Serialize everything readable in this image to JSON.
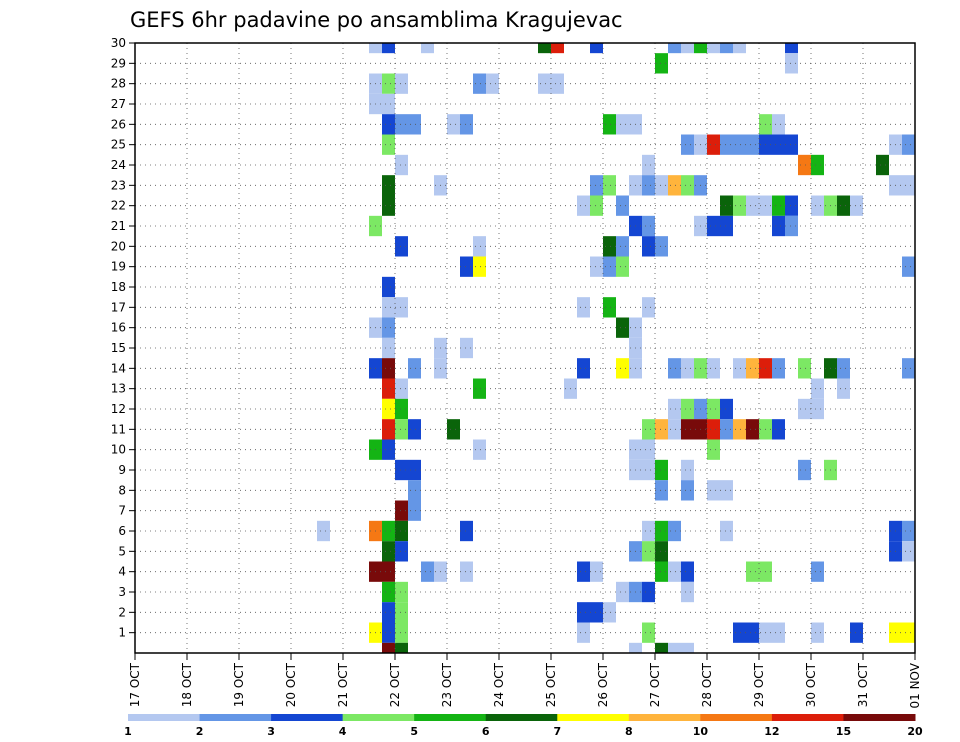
{
  "chart_data": {
    "type": "heatmap",
    "title": "GEFS 6hr padavine po ansamblima Kragujevac",
    "xlabel": "",
    "ylabel": "",
    "x_ticks": [
      "17 OCT",
      "18 OCT",
      "19 OCT",
      "20 OCT",
      "21 OCT",
      "22 OCT",
      "23 OCT",
      "24 OCT",
      "25 OCT",
      "26 OCT",
      "27 OCT",
      "28 OCT",
      "29 OCT",
      "30 OCT",
      "31 OCT",
      "01 NOV"
    ],
    "y_ticks": [
      "1",
      "2",
      "3",
      "4",
      "5",
      "6",
      "7",
      "8",
      "9",
      "10",
      "11",
      "12",
      "13",
      "14",
      "15",
      "16",
      "17",
      "18",
      "19",
      "20",
      "21",
      "22",
      "23",
      "24",
      "25",
      "26",
      "27",
      "28",
      "29",
      "30"
    ],
    "y_range": [
      0,
      30
    ],
    "x_range_days": [
      0,
      15
    ],
    "grid": true,
    "colorbar": {
      "levels": [
        "1",
        "2",
        "3",
        "4",
        "5",
        "6",
        "7",
        "8",
        "10",
        "12",
        "15",
        "20"
      ],
      "colors": [
        "#b4c8f0",
        "#6496e6",
        "#1446d2",
        "#7ce864",
        "#14b414",
        "#0a640a",
        "#ffff00",
        "#ffb43c",
        "#f57814",
        "#dc1e0a",
        "#780a0a"
      ],
      "placement": "bottom"
    },
    "cells": [
      [
        21.5,
        30,
        1
      ],
      [
        21.75,
        30,
        3
      ],
      [
        22.5,
        30,
        1
      ],
      [
        24.75,
        30,
        6
      ],
      [
        25,
        30,
        10
      ],
      [
        25.75,
        30,
        3
      ],
      [
        27.25,
        30,
        2
      ],
      [
        27.5,
        30,
        1
      ],
      [
        27.75,
        30,
        5
      ],
      [
        28,
        30,
        1
      ],
      [
        28.25,
        30,
        2
      ],
      [
        28.5,
        30,
        1
      ],
      [
        29.5,
        30,
        3
      ],
      [
        27,
        29,
        5
      ],
      [
        29.5,
        29,
        1
      ],
      [
        21.5,
        28,
        1
      ],
      [
        21.75,
        28,
        4
      ],
      [
        22,
        28,
        1
      ],
      [
        23.5,
        28,
        2
      ],
      [
        23.75,
        28,
        1
      ],
      [
        24.75,
        28,
        1
      ],
      [
        25,
        28,
        1
      ],
      [
        21.5,
        27,
        1
      ],
      [
        21.75,
        27,
        1
      ],
      [
        21.75,
        26,
        3
      ],
      [
        22,
        26,
        2
      ],
      [
        22.25,
        26,
        2
      ],
      [
        23,
        26,
        1
      ],
      [
        23.25,
        26,
        2
      ],
      [
        26,
        26,
        5
      ],
      [
        26.25,
        26,
        1
      ],
      [
        26.5,
        26,
        1
      ],
      [
        29,
        26,
        4
      ],
      [
        29.25,
        26,
        1
      ],
      [
        21.75,
        25,
        4
      ],
      [
        27.5,
        25,
        2
      ],
      [
        27.75,
        25,
        1
      ],
      [
        28,
        25,
        10
      ],
      [
        28.25,
        25,
        2
      ],
      [
        28.5,
        25,
        2
      ],
      [
        28.75,
        25,
        2
      ],
      [
        29,
        25,
        3
      ],
      [
        29.25,
        25,
        3
      ],
      [
        29.5,
        25,
        3
      ],
      [
        31.5,
        25,
        1
      ],
      [
        31.75,
        25,
        2
      ],
      [
        22,
        24,
        1
      ],
      [
        26.75,
        24,
        1
      ],
      [
        29.75,
        24,
        9
      ],
      [
        30,
        24,
        5
      ],
      [
        31.25,
        24,
        6
      ],
      [
        21.75,
        23,
        6
      ],
      [
        22.75,
        23,
        1
      ],
      [
        25.75,
        23,
        2
      ],
      [
        26,
        23,
        4
      ],
      [
        26.5,
        23,
        1
      ],
      [
        26.75,
        23,
        2
      ],
      [
        27,
        23,
        1
      ],
      [
        27.25,
        23,
        8
      ],
      [
        27.5,
        23,
        4
      ],
      [
        27.75,
        23,
        2
      ],
      [
        31.5,
        23,
        1
      ],
      [
        31.75,
        23,
        1
      ],
      [
        21.75,
        22,
        6
      ],
      [
        25.5,
        22,
        1
      ],
      [
        25.75,
        22,
        4
      ],
      [
        26.25,
        22,
        2
      ],
      [
        28.25,
        22,
        6
      ],
      [
        28.5,
        22,
        4
      ],
      [
        28.75,
        22,
        1
      ],
      [
        29,
        22,
        1
      ],
      [
        29.25,
        22,
        5
      ],
      [
        29.5,
        22,
        3
      ],
      [
        30,
        22,
        1
      ],
      [
        30.25,
        22,
        4
      ],
      [
        30.5,
        22,
        6
      ],
      [
        30.75,
        22,
        1
      ],
      [
        21.5,
        21,
        4
      ],
      [
        26.5,
        21,
        3
      ],
      [
        26.75,
        21,
        2
      ],
      [
        27.75,
        21,
        1
      ],
      [
        28,
        21,
        3
      ],
      [
        28.25,
        21,
        3
      ],
      [
        29.25,
        21,
        3
      ],
      [
        29.5,
        21,
        2
      ],
      [
        22,
        20,
        3
      ],
      [
        23.5,
        20,
        1
      ],
      [
        26,
        20,
        6
      ],
      [
        26.25,
        20,
        2
      ],
      [
        26.75,
        20,
        3
      ],
      [
        27,
        20,
        2
      ],
      [
        23.25,
        19,
        3
      ],
      [
        23.5,
        19,
        7
      ],
      [
        25.75,
        19,
        1
      ],
      [
        26,
        19,
        2
      ],
      [
        26.25,
        19,
        4
      ],
      [
        31.75,
        19,
        2
      ],
      [
        32,
        19,
        8
      ],
      [
        21.75,
        18,
        3
      ],
      [
        21.75,
        17,
        1
      ],
      [
        22,
        17,
        1
      ],
      [
        25.5,
        17,
        1
      ],
      [
        26,
        17,
        5
      ],
      [
        26.75,
        17,
        1
      ],
      [
        21.5,
        16,
        1
      ],
      [
        21.75,
        16,
        2
      ],
      [
        26.25,
        16,
        6
      ],
      [
        26.5,
        16,
        1
      ],
      [
        21.75,
        15,
        1
      ],
      [
        22.75,
        15,
        1
      ],
      [
        23.25,
        15,
        1
      ],
      [
        26.5,
        15,
        1
      ],
      [
        21.5,
        14,
        3
      ],
      [
        21.75,
        14,
        11
      ],
      [
        22.25,
        14,
        2
      ],
      [
        22.75,
        14,
        1
      ],
      [
        25.5,
        14,
        3
      ],
      [
        26.25,
        14,
        7
      ],
      [
        26.5,
        14,
        1
      ],
      [
        27.25,
        14,
        2
      ],
      [
        27.5,
        14,
        1
      ],
      [
        27.75,
        14,
        4
      ],
      [
        28,
        14,
        1
      ],
      [
        28.5,
        14,
        1
      ],
      [
        28.75,
        14,
        8
      ],
      [
        29,
        14,
        10
      ],
      [
        29.25,
        14,
        2
      ],
      [
        29.75,
        14,
        4
      ],
      [
        30.25,
        14,
        6
      ],
      [
        30.5,
        14,
        2
      ],
      [
        31.75,
        14,
        2
      ],
      [
        21.75,
        13,
        10
      ],
      [
        22,
        13,
        1
      ],
      [
        23.5,
        13,
        5
      ],
      [
        25.25,
        13,
        1
      ],
      [
        30,
        13,
        1
      ],
      [
        30.5,
        13,
        1
      ],
      [
        21.75,
        12,
        7
      ],
      [
        22,
        12,
        5
      ],
      [
        27.25,
        12,
        1
      ],
      [
        27.5,
        12,
        4
      ],
      [
        27.75,
        12,
        2
      ],
      [
        28,
        12,
        4
      ],
      [
        28.25,
        12,
        3
      ],
      [
        29.75,
        12,
        1
      ],
      [
        30,
        12,
        1
      ],
      [
        21.75,
        11,
        10
      ],
      [
        22,
        11,
        4
      ],
      [
        22.25,
        11,
        3
      ],
      [
        23,
        11,
        6
      ],
      [
        26.75,
        11,
        4
      ],
      [
        27,
        11,
        8
      ],
      [
        27.25,
        11,
        1
      ],
      [
        27.5,
        11,
        11
      ],
      [
        27.75,
        11,
        11
      ],
      [
        28,
        11,
        10
      ],
      [
        28.25,
        11,
        2
      ],
      [
        28.5,
        11,
        8
      ],
      [
        28.75,
        11,
        11
      ],
      [
        29,
        11,
        4
      ],
      [
        29.25,
        11,
        3
      ],
      [
        21.5,
        10,
        5
      ],
      [
        21.75,
        10,
        3
      ],
      [
        23.5,
        10,
        1
      ],
      [
        26.5,
        10,
        1
      ],
      [
        26.75,
        10,
        1
      ],
      [
        28,
        10,
        4
      ],
      [
        22,
        9,
        3
      ],
      [
        22.25,
        9,
        3
      ],
      [
        26.5,
        9,
        1
      ],
      [
        26.75,
        9,
        1
      ],
      [
        27,
        9,
        5
      ],
      [
        27.5,
        9,
        1
      ],
      [
        29.75,
        9,
        2
      ],
      [
        30.25,
        9,
        4
      ],
      [
        22.25,
        8,
        2
      ],
      [
        27,
        8,
        2
      ],
      [
        27.5,
        8,
        2
      ],
      [
        28,
        8,
        1
      ],
      [
        28.25,
        8,
        1
      ],
      [
        22,
        7,
        11
      ],
      [
        22.25,
        7,
        2
      ],
      [
        20.5,
        6,
        1
      ],
      [
        21.5,
        6,
        9
      ],
      [
        21.75,
        6,
        5
      ],
      [
        22,
        6,
        6
      ],
      [
        23.25,
        6,
        3
      ],
      [
        26.75,
        6,
        1
      ],
      [
        27,
        6,
        5
      ],
      [
        27.25,
        6,
        2
      ],
      [
        28.25,
        6,
        1
      ],
      [
        31.5,
        6,
        3
      ],
      [
        31.75,
        6,
        2
      ],
      [
        21.75,
        5,
        6
      ],
      [
        22,
        5,
        3
      ],
      [
        26.5,
        5,
        2
      ],
      [
        26.75,
        5,
        4
      ],
      [
        27,
        5,
        6
      ],
      [
        31.5,
        5,
        3
      ],
      [
        31.75,
        5,
        1
      ],
      [
        21.5,
        4,
        11
      ],
      [
        21.75,
        4,
        11
      ],
      [
        22.5,
        4,
        2
      ],
      [
        22.75,
        4,
        1
      ],
      [
        23.25,
        4,
        1
      ],
      [
        25.5,
        4,
        3
      ],
      [
        25.75,
        4,
        1
      ],
      [
        27,
        4,
        5
      ],
      [
        27.25,
        4,
        1
      ],
      [
        27.5,
        4,
        3
      ],
      [
        28.75,
        4,
        4
      ],
      [
        29,
        4,
        4
      ],
      [
        30,
        4,
        2
      ],
      [
        21.75,
        3,
        5
      ],
      [
        22,
        3,
        4
      ],
      [
        26.25,
        3,
        1
      ],
      [
        26.5,
        3,
        2
      ],
      [
        26.75,
        3,
        3
      ],
      [
        27.5,
        3,
        1
      ],
      [
        21.75,
        2,
        3
      ],
      [
        22,
        2,
        4
      ],
      [
        25.5,
        2,
        3
      ],
      [
        25.75,
        2,
        3
      ],
      [
        26,
        2,
        1
      ],
      [
        21.5,
        1,
        7
      ],
      [
        21.75,
        1,
        3
      ],
      [
        22,
        1,
        4
      ],
      [
        25.5,
        1,
        1
      ],
      [
        26.75,
        1,
        4
      ],
      [
        28.5,
        1,
        3
      ],
      [
        28.75,
        1,
        3
      ],
      [
        29,
        1,
        1
      ],
      [
        29.25,
        1,
        1
      ],
      [
        30,
        1,
        1
      ],
      [
        30.75,
        1,
        3
      ],
      [
        31.5,
        1,
        7
      ],
      [
        31.75,
        1,
        7
      ],
      [
        32,
        1,
        8
      ],
      [
        21.75,
        0,
        11
      ],
      [
        22,
        0,
        6
      ],
      [
        26.5,
        0,
        1
      ],
      [
        27,
        0,
        6
      ],
      [
        27.25,
        0,
        1
      ],
      [
        27.5,
        0,
        1
      ]
    ]
  }
}
